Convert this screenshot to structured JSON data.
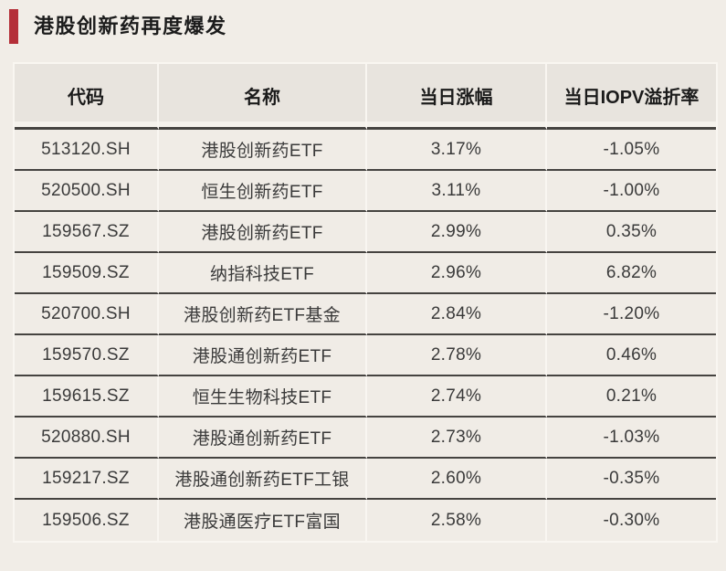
{
  "page": {
    "background": "#f1ede7"
  },
  "title": {
    "text": "港股创新药再度爆发",
    "accent_color": "#b42f38"
  },
  "table": {
    "headers": [
      "代码",
      "名称",
      "当日涨幅",
      "当日IOPV溢折率"
    ],
    "rows": [
      {
        "code": "513120.SH",
        "name": "港股创新药ETF",
        "change": "3.17%",
        "iopv": "-1.05%"
      },
      {
        "code": "520500.SH",
        "name": "恒生创新药ETF",
        "change": "3.11%",
        "iopv": "-1.00%"
      },
      {
        "code": "159567.SZ",
        "name": "港股创新药ETF",
        "change": "2.99%",
        "iopv": "0.35%"
      },
      {
        "code": "159509.SZ",
        "name": "纳指科技ETF",
        "change": "2.96%",
        "iopv": "6.82%"
      },
      {
        "code": "520700.SH",
        "name": "港股创新药ETF基金",
        "change": "2.84%",
        "iopv": "-1.20%"
      },
      {
        "code": "159570.SZ",
        "name": "港股通创新药ETF",
        "change": "2.78%",
        "iopv": "0.46%"
      },
      {
        "code": "159615.SZ",
        "name": "恒生生物科技ETF",
        "change": "2.74%",
        "iopv": "0.21%"
      },
      {
        "code": "520880.SH",
        "name": "港股通创新药ETF",
        "change": "2.73%",
        "iopv": "-1.03%"
      },
      {
        "code": "159217.SZ",
        "name": "港股通创新药ETF工银",
        "change": "2.60%",
        "iopv": "-0.35%"
      },
      {
        "code": "159506.SZ",
        "name": "港股通医疗ETF富国",
        "change": "2.58%",
        "iopv": "-0.30%"
      }
    ]
  },
  "chart_data": {
    "type": "table",
    "title": "港股创新药再度爆发",
    "columns": [
      "代码",
      "名称",
      "当日涨幅",
      "当日IOPV溢折率"
    ],
    "rows": [
      [
        "513120.SH",
        "港股创新药ETF",
        "3.17%",
        "-1.05%"
      ],
      [
        "520500.SH",
        "恒生创新药ETF",
        "3.11%",
        "-1.00%"
      ],
      [
        "159567.SZ",
        "港股创新药ETF",
        "2.99%",
        "0.35%"
      ],
      [
        "159509.SZ",
        "纳指科技ETF",
        "2.96%",
        "6.82%"
      ],
      [
        "520700.SH",
        "港股创新药ETF基金",
        "2.84%",
        "-1.20%"
      ],
      [
        "159570.SZ",
        "港股通创新药ETF",
        "2.78%",
        "0.46%"
      ],
      [
        "159615.SZ",
        "恒生生物科技ETF",
        "2.74%",
        "0.21%"
      ],
      [
        "520880.SH",
        "港股通创新药ETF",
        "2.73%",
        "-1.03%"
      ],
      [
        "159217.SZ",
        "港股通创新药ETF工银",
        "2.60%",
        "-0.35%"
      ],
      [
        "159506.SZ",
        "港股通医疗ETF富国",
        "2.58%",
        "-0.30%"
      ]
    ],
    "daily_change_pct": [
      3.17,
      3.11,
      2.99,
      2.96,
      2.84,
      2.78,
      2.74,
      2.73,
      2.6,
      2.58
    ],
    "iopv_premium_discount_pct": [
      -1.05,
      -1.0,
      0.35,
      6.82,
      -1.2,
      0.46,
      0.21,
      -1.03,
      -0.35,
      -0.3
    ]
  }
}
